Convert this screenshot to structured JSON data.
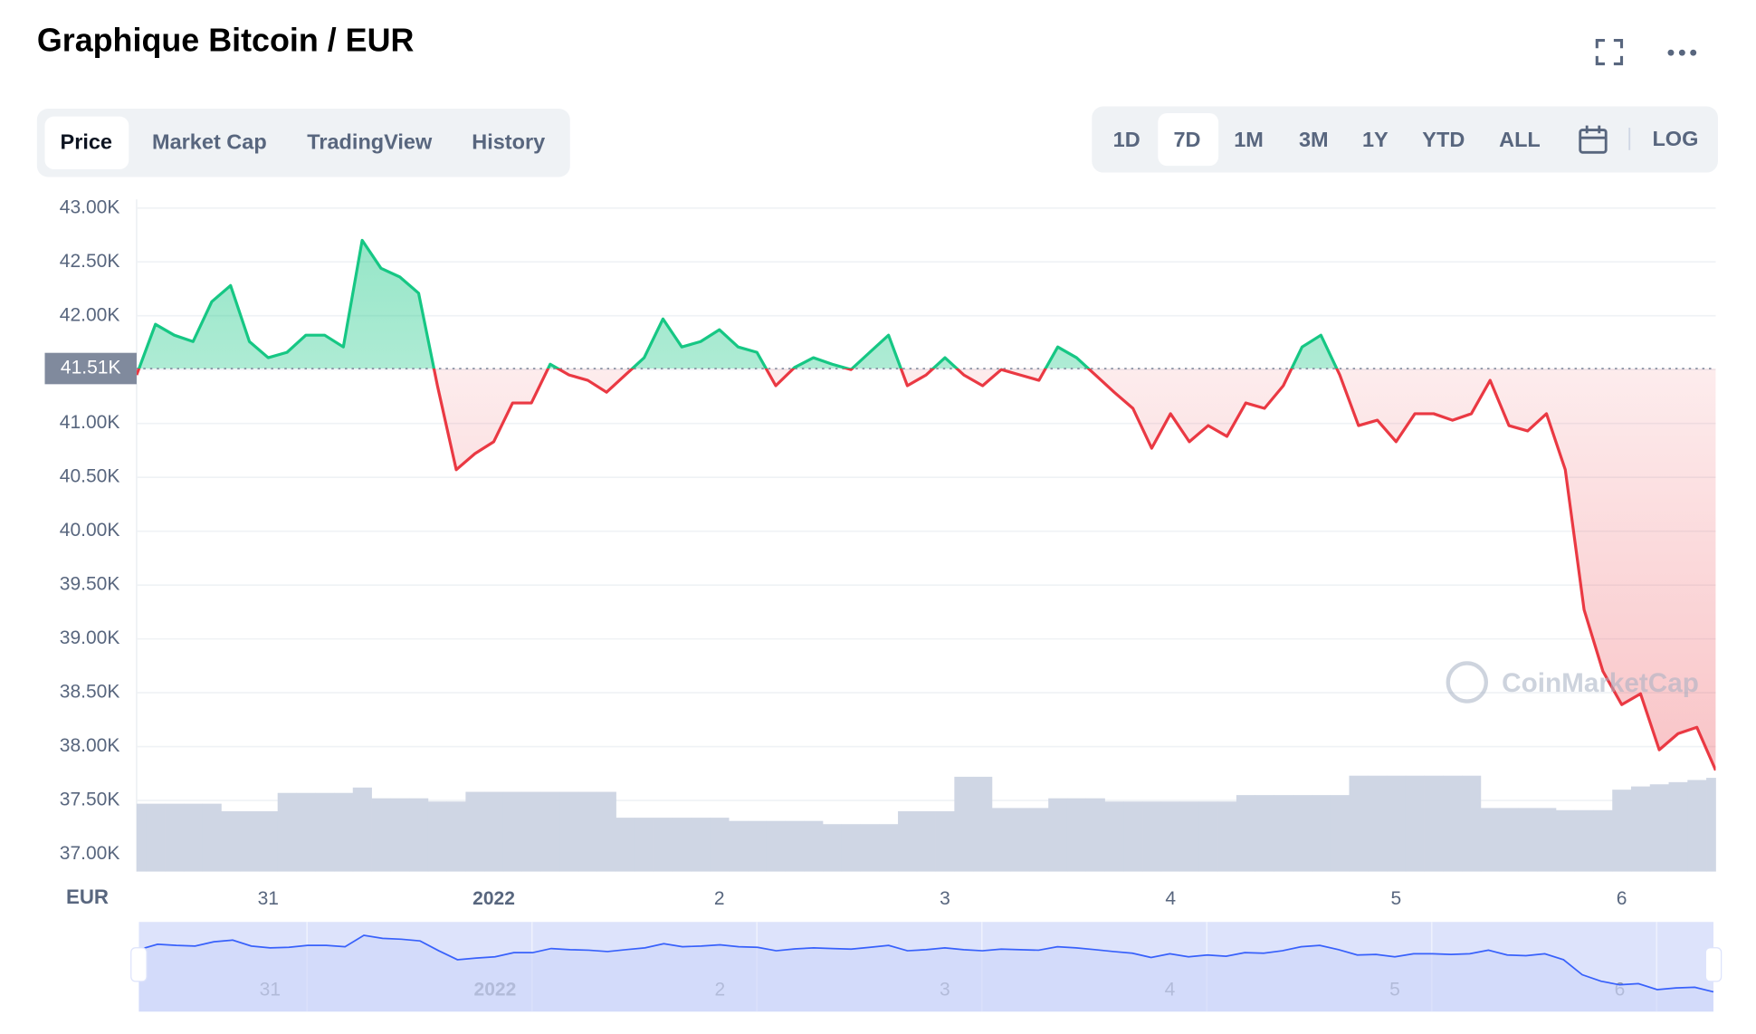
{
  "header": {
    "title": "Graphique Bitcoin / EUR",
    "tabs": [
      "Price",
      "Market Cap",
      "TradingView",
      "History"
    ],
    "ranges": [
      "1D",
      "7D",
      "1M",
      "3M",
      "1Y",
      "YTD",
      "ALL"
    ],
    "log_button": "LOG",
    "watermark": "CoinMarketCap"
  },
  "chart_data": {
    "type": "line",
    "ylabel": "EUR",
    "categories": [
      null,
      null,
      null,
      null,
      null,
      null,
      null,
      "31",
      null,
      null,
      null,
      null,
      null,
      null,
      null,
      null,
      null,
      null,
      null,
      "2022",
      null,
      null,
      null,
      null,
      null,
      null,
      null,
      null,
      null,
      null,
      null,
      "2",
      null,
      null,
      null,
      null,
      null,
      null,
      null,
      null,
      null,
      null,
      null,
      "3",
      null,
      null,
      null,
      null,
      null,
      null,
      null,
      null,
      null,
      null,
      null,
      "4",
      null,
      null,
      null,
      null,
      null,
      null,
      null,
      null,
      null,
      null,
      null,
      "5",
      null,
      null,
      null,
      null,
      null,
      null,
      null,
      null,
      null,
      null,
      null,
      "6",
      null,
      null,
      null,
      null,
      null
    ],
    "series": [
      {
        "color_up": "#16c784",
        "color_down": "#ea3943",
        "values": [
          41.45,
          41.92,
          41.82,
          41.76,
          42.13,
          42.28,
          41.76,
          41.61,
          41.66,
          41.82,
          41.82,
          41.71,
          42.7,
          42.44,
          42.36,
          42.21,
          41.35,
          40.57,
          40.72,
          40.83,
          41.19,
          41.19,
          41.55,
          41.45,
          41.4,
          41.29,
          41.45,
          41.61,
          41.97,
          41.71,
          41.76,
          41.87,
          41.71,
          41.66,
          41.35,
          41.52,
          41.61,
          41.55,
          41.5,
          41.66,
          41.82,
          41.35,
          41.45,
          41.61,
          41.45,
          41.35,
          41.5,
          41.45,
          41.4,
          41.71,
          41.61,
          41.45,
          41.29,
          41.14,
          40.77,
          41.09,
          40.83,
          40.98,
          40.88,
          41.19,
          41.14,
          41.35,
          41.71,
          41.82,
          41.45,
          40.98,
          41.03,
          40.83,
          41.09,
          41.09,
          41.03,
          41.09,
          41.4,
          40.98,
          40.93,
          41.09,
          40.57,
          39.27,
          38.7,
          38.39,
          38.49,
          37.97,
          38.12,
          38.18,
          37.78
        ]
      }
    ],
    "volume": {
      "color": "#cfd6e4",
      "values": [
        37.47,
        37.47,
        37.47,
        37.47,
        37.47,
        37.4,
        37.4,
        37.4,
        37.57,
        37.57,
        37.57,
        37.57,
        37.62,
        37.52,
        37.52,
        37.52,
        37.49,
        37.49,
        37.58,
        37.58,
        37.58,
        37.58,
        37.58,
        37.58,
        37.58,
        37.58,
        37.34,
        37.34,
        37.34,
        37.34,
        37.34,
        37.34,
        37.31,
        37.31,
        37.31,
        37.31,
        37.31,
        37.28,
        37.28,
        37.28,
        37.28,
        37.4,
        37.4,
        37.4,
        37.72,
        37.72,
        37.43,
        37.43,
        37.43,
        37.52,
        37.52,
        37.52,
        37.49,
        37.49,
        37.49,
        37.49,
        37.49,
        37.49,
        37.49,
        37.55,
        37.55,
        37.55,
        37.55,
        37.55,
        37.55,
        37.73,
        37.73,
        37.73,
        37.73,
        37.73,
        37.73,
        37.73,
        37.43,
        37.43,
        37.43,
        37.43,
        37.41,
        37.41,
        37.41,
        37.6,
        37.63,
        37.65,
        37.67,
        37.69,
        37.71
      ]
    },
    "baseline": {
      "value": 41.51,
      "label": "41.51K"
    },
    "ylim": [
      36.84,
      43.08
    ],
    "yticks": [
      {
        "value": 37,
        "label": "37.00K"
      },
      {
        "value": 37.5,
        "label": "37.50K"
      },
      {
        "value": 38,
        "label": "38.00K"
      },
      {
        "value": 38.5,
        "label": "38.50K"
      },
      {
        "value": 39,
        "label": "39.00K"
      },
      {
        "value": 39.5,
        "label": "39.50K"
      },
      {
        "value": 40,
        "label": "40.00K"
      },
      {
        "value": 40.5,
        "label": "40.50K"
      },
      {
        "value": 41,
        "label": "41.00K"
      },
      {
        "value": 41.5,
        "label": "41.50K"
      },
      {
        "value": 42,
        "label": "42.00K"
      },
      {
        "value": 42.5,
        "label": "42.50K"
      },
      {
        "value": 43,
        "label": "43.00K"
      }
    ],
    "grid": true
  }
}
